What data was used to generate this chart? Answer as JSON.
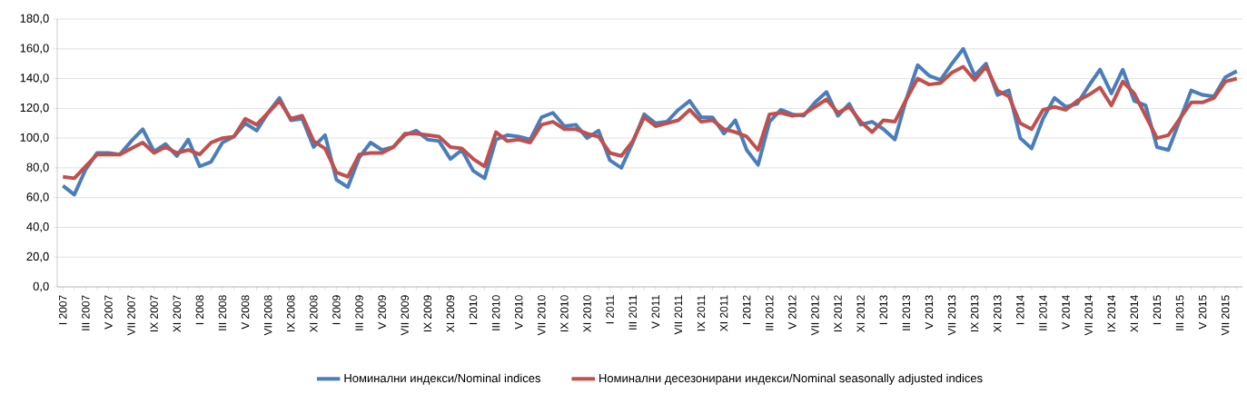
{
  "chart_data": {
    "type": "line",
    "categories": [
      "I 2007",
      null,
      "III 2007",
      null,
      "V 2007",
      null,
      "VII 2007",
      null,
      "IX 2007",
      null,
      "XI 2007",
      null,
      "I 2008",
      null,
      "III 2008",
      null,
      "V 2008",
      null,
      "VII 2008",
      null,
      "IX 2008",
      null,
      "XI 2008",
      null,
      "I 2009",
      null,
      "III 2009",
      null,
      "V 2009",
      null,
      "VII 2009",
      null,
      "IX 2009",
      null,
      "XI 2009",
      null,
      "I 2010",
      null,
      "III 2010",
      null,
      "V 2010",
      null,
      "VII 2010",
      null,
      "IX 2010",
      null,
      "XI 2010",
      null,
      "I 2011",
      null,
      "III 2011",
      null,
      "V 2011",
      null,
      "VII 2011",
      null,
      "IX 2011",
      null,
      "XI 2011",
      null,
      "I 2012",
      null,
      "III 2012",
      null,
      "V 2012",
      null,
      "VII 2012",
      null,
      "IX 2012",
      null,
      "XI 2012",
      null,
      "I 2013",
      null,
      "III 2013",
      null,
      "V 2013",
      null,
      "VII 2013",
      null,
      "IX 2013",
      null,
      "XI 2013",
      null,
      "I 2014",
      null,
      "III 2014",
      null,
      "V 2014",
      null,
      "VII 2014",
      null,
      "IX 2014",
      null,
      "XI 2014",
      null,
      "I 2015",
      null,
      "III 2015",
      null,
      "V 2015",
      null,
      "VII 2015",
      null
    ],
    "series": [
      {
        "name": "Номинални индекси/Nominal indices",
        "color": "#4a7ebb",
        "values": [
          68,
          62,
          79,
          90,
          90,
          89,
          98,
          106,
          91,
          96,
          88,
          99,
          81,
          84,
          97,
          101,
          110,
          105,
          117,
          127,
          112,
          113,
          94,
          102,
          72,
          67,
          87,
          97,
          92,
          94,
          102,
          105,
          99,
          98,
          86,
          92,
          78,
          73,
          99,
          102,
          101,
          99,
          114,
          117,
          108,
          109,
          100,
          105,
          85,
          80,
          97,
          116,
          110,
          111,
          119,
          125,
          114,
          114,
          103,
          112,
          92,
          82,
          111,
          119,
          116,
          115,
          124,
          131,
          115,
          123,
          109,
          111,
          106,
          99,
          126,
          149,
          142,
          139,
          150,
          160,
          142,
          150,
          129,
          132,
          100,
          93,
          113,
          127,
          121,
          123,
          135,
          146,
          130,
          146,
          125,
          122,
          94,
          92,
          112,
          132,
          129,
          128,
          141,
          145
        ]
      },
      {
        "name": "Номинални десезонирани индекси/Nominal seasonally adjusted indices",
        "color": "#c0504d",
        "values": [
          74,
          73,
          81,
          89,
          89,
          89,
          93,
          97,
          90,
          94,
          90,
          92,
          89,
          97,
          100,
          101,
          113,
          109,
          117,
          125,
          113,
          115,
          98,
          93,
          77,
          74,
          89,
          90,
          90,
          94,
          103,
          103,
          102,
          101,
          94,
          93,
          86,
          81,
          104,
          98,
          99,
          97,
          109,
          111,
          106,
          106,
          103,
          101,
          90,
          88,
          98,
          114,
          108,
          110,
          112,
          119,
          111,
          112,
          106,
          104,
          101,
          92,
          116,
          117,
          115,
          116,
          121,
          126,
          117,
          121,
          111,
          104,
          112,
          111,
          126,
          140,
          136,
          137,
          144,
          148,
          139,
          148,
          132,
          128,
          110,
          106,
          119,
          121,
          119,
          125,
          129,
          134,
          122,
          138,
          130,
          115,
          100,
          102,
          113,
          124,
          124,
          127,
          138,
          140
        ]
      }
    ],
    "ylim": [
      0,
      180
    ],
    "yticks": [
      {
        "value": 0,
        "label": "0,0"
      },
      {
        "value": 20,
        "label": "20,0"
      },
      {
        "value": 40,
        "label": "40,0"
      },
      {
        "value": 60,
        "label": "60,0"
      },
      {
        "value": 80,
        "label": "80,0"
      },
      {
        "value": 100,
        "label": "100,0"
      },
      {
        "value": 120,
        "label": "120,0"
      },
      {
        "value": 140,
        "label": "140,0"
      },
      {
        "value": 160,
        "label": "160,0"
      },
      {
        "value": 180,
        "label": "180,0"
      }
    ],
    "grid": "y",
    "legend": "bottom",
    "marker": "none",
    "line_style": "solid"
  }
}
